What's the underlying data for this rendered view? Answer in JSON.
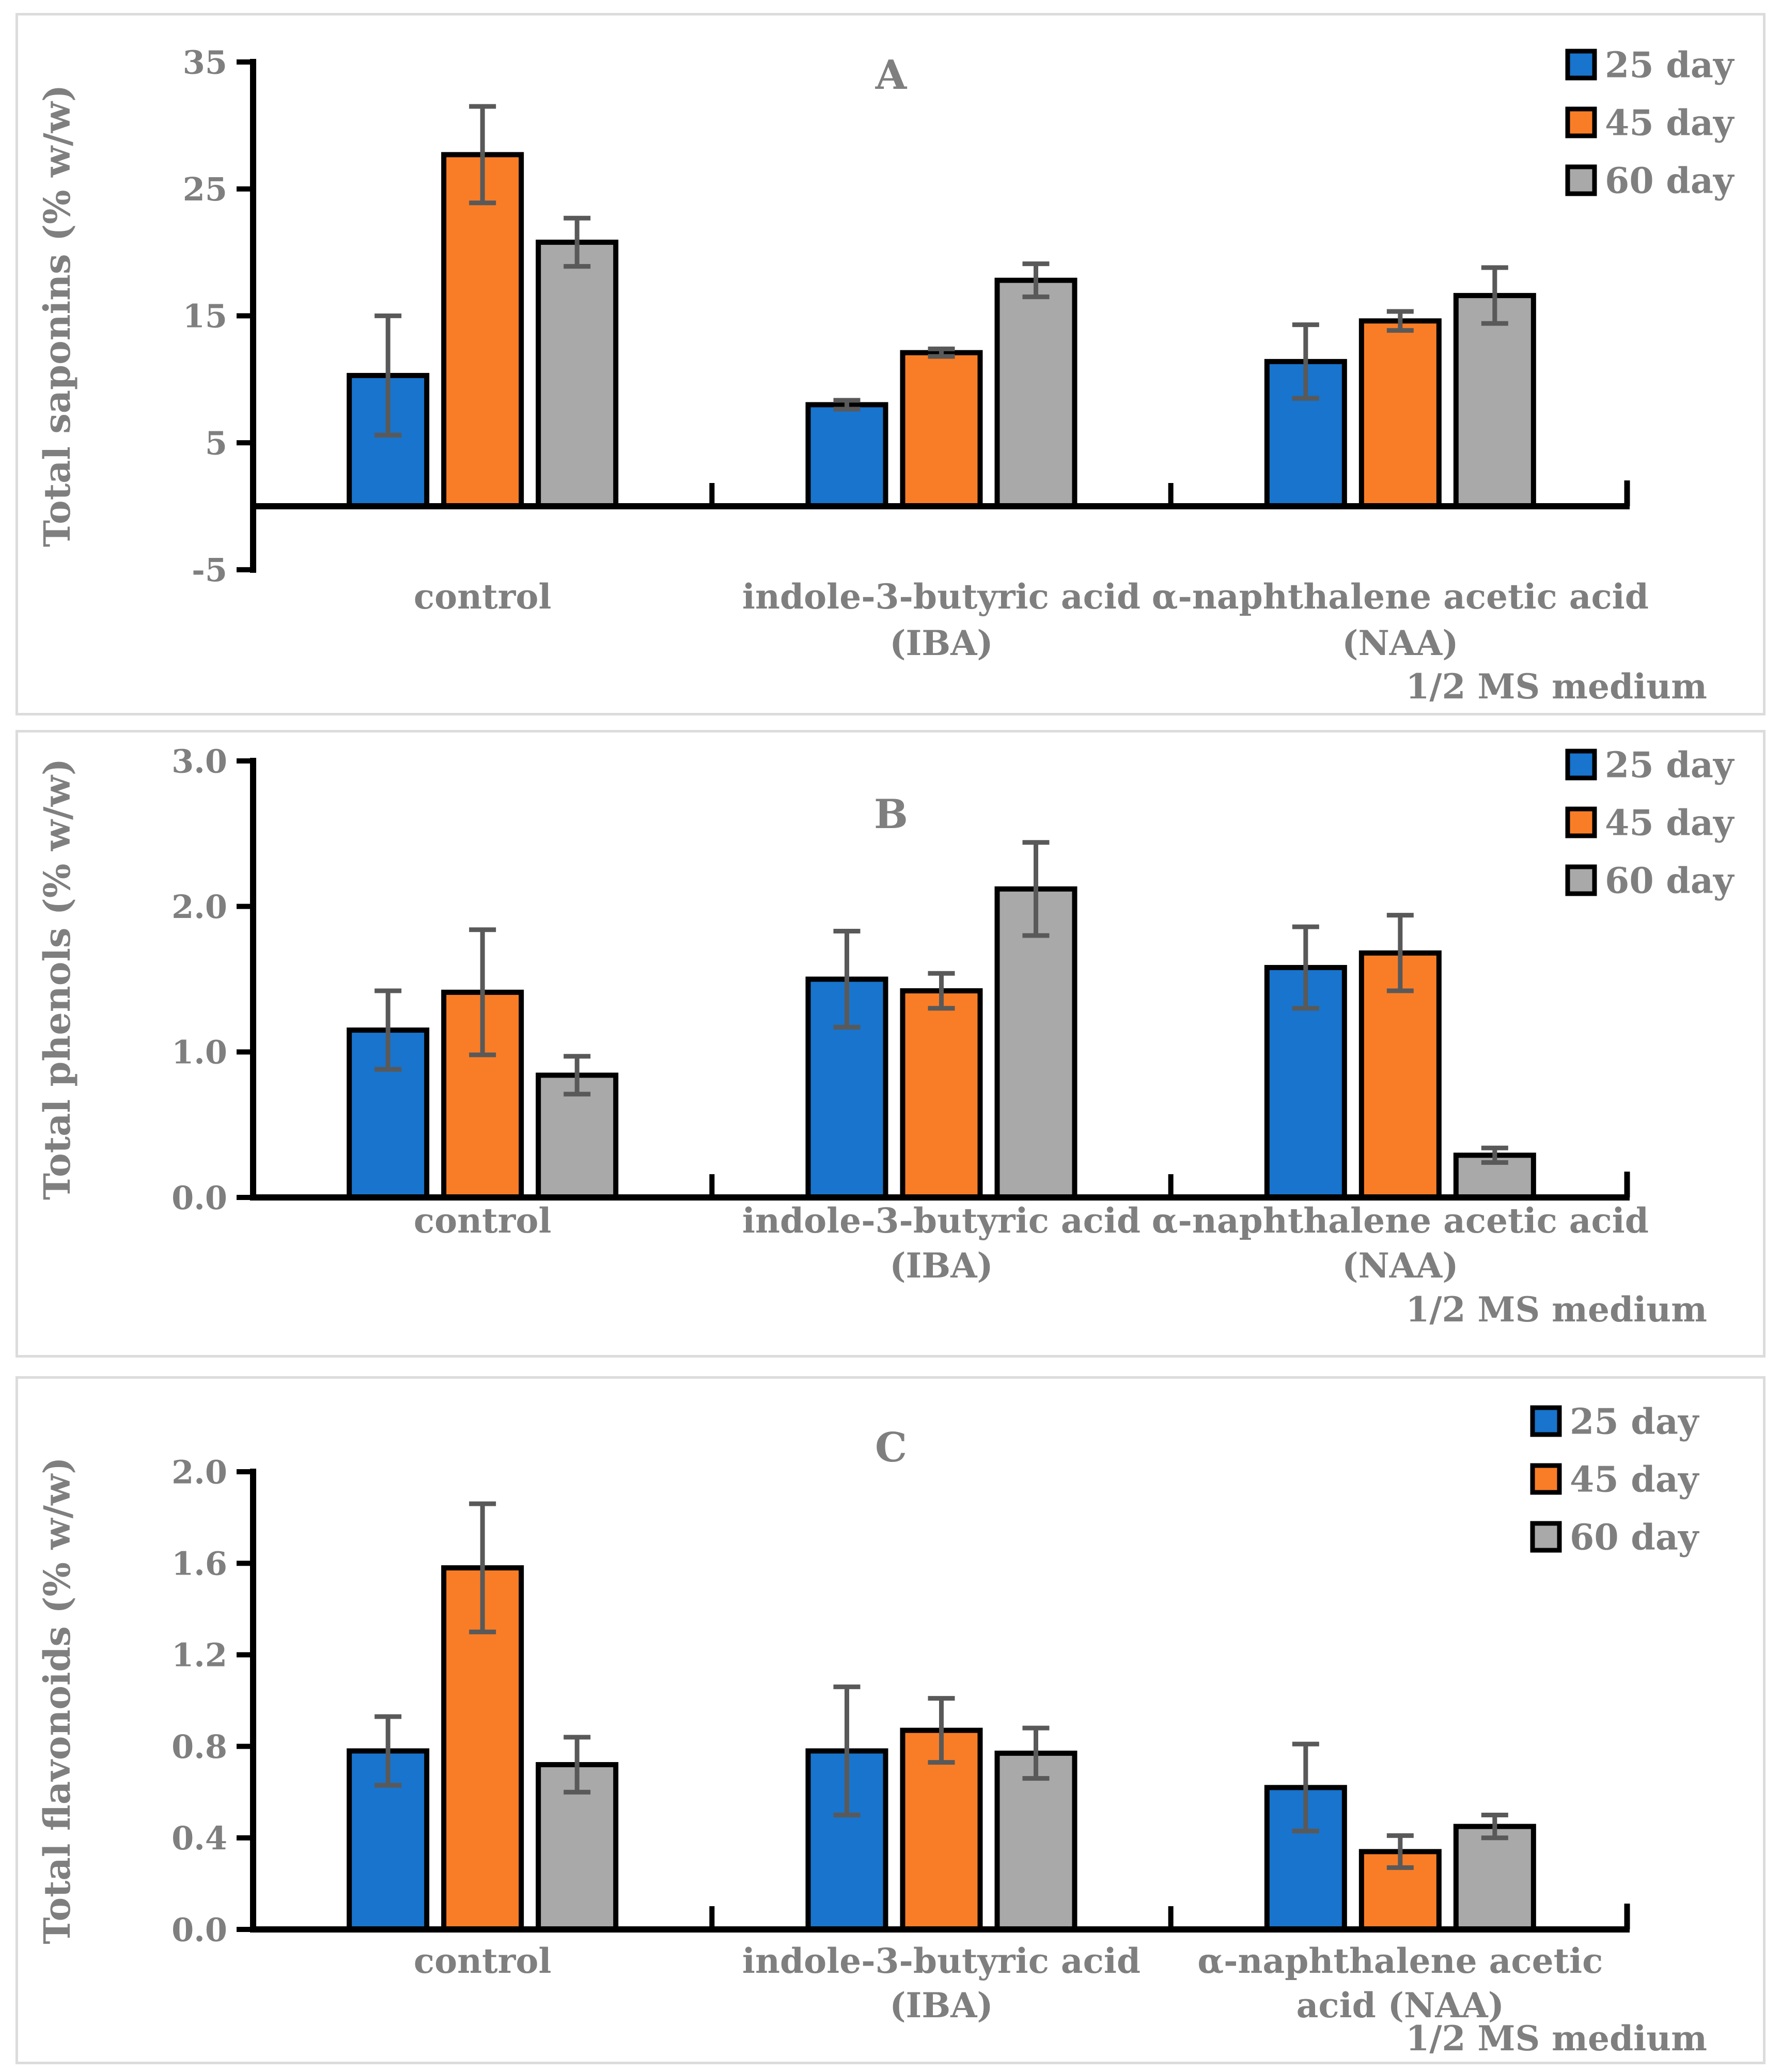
{
  "colors": {
    "series": [
      "#1874CC",
      "#F97D27",
      "#A9A9A9"
    ],
    "error_bar": "#595959",
    "text": "#7F7F7F",
    "axis": "#000000",
    "panel_border": "#DCDCDC"
  },
  "legend": {
    "labels": [
      "25 day",
      "45 day",
      "60 day"
    ]
  },
  "chart_data": [
    {
      "type": "bar",
      "panel_label": "A",
      "ylabel": "Total saponins (% w/w)",
      "ylim": [
        -5,
        35
      ],
      "yticks": [
        {
          "value": 35,
          "label": "35"
        },
        {
          "value": 25,
          "label": "25"
        },
        {
          "value": 15,
          "label": "15"
        },
        {
          "value": 5,
          "label": "5"
        },
        {
          "value": -5,
          "label": "-5"
        }
      ],
      "grid": false,
      "legend_position": "top-right",
      "categories": [
        {
          "label": "control",
          "lines": [
            "control"
          ]
        },
        {
          "label": "indole-3-butyric acid (IBA)",
          "lines": [
            "indole-3-butyric acid",
            "(IBA)"
          ]
        },
        {
          "label": "α-naphthalene acetic acid (NAA)",
          "lines": [
            "α-naphthalene acetic acid",
            "(NAA)"
          ]
        }
      ],
      "series": [
        {
          "name": "25 day",
          "values": [
            10.3,
            8.0,
            11.4
          ],
          "errors": [
            4.7,
            0.35,
            2.9
          ]
        },
        {
          "name": "45 day",
          "values": [
            27.7,
            12.1,
            14.6
          ],
          "errors": [
            3.8,
            0.3,
            0.75
          ]
        },
        {
          "name": "60 day",
          "values": [
            20.8,
            17.8,
            16.6
          ],
          "errors": [
            1.9,
            1.3,
            2.2
          ]
        }
      ],
      "annotation": "1/2 MS medium"
    },
    {
      "type": "bar",
      "panel_label": "B",
      "ylabel": "Total phenols (% w/w)",
      "ylim": [
        0,
        3
      ],
      "yticks": [
        {
          "value": 3,
          "label": "3.0"
        },
        {
          "value": 2,
          "label": "2.0"
        },
        {
          "value": 1,
          "label": "1.0"
        },
        {
          "value": 0,
          "label": "0.0"
        }
      ],
      "grid": false,
      "legend_position": "top-right",
      "categories": [
        {
          "label": "control",
          "lines": [
            "control"
          ]
        },
        {
          "label": "indole-3-butyric acid (IBA)",
          "lines": [
            "indole-3-butyric acid",
            "(IBA)"
          ]
        },
        {
          "label": "α-naphthalene acetic acid (NAA)",
          "lines": [
            "α-naphthalene acetic acid",
            "(NAA)"
          ]
        }
      ],
      "series": [
        {
          "name": "25 day",
          "values": [
            1.15,
            1.5,
            1.58
          ],
          "errors": [
            0.27,
            0.33,
            0.28
          ]
        },
        {
          "name": "45 day",
          "values": [
            1.41,
            1.42,
            1.68
          ],
          "errors": [
            0.43,
            0.12,
            0.26
          ]
        },
        {
          "name": "60 day",
          "values": [
            0.84,
            2.12,
            0.29
          ],
          "errors": [
            0.13,
            0.32,
            0.05
          ]
        }
      ],
      "annotation": "1/2 MS medium"
    },
    {
      "type": "bar",
      "panel_label": "C",
      "ylabel": "Total flavonoids (% w/w)",
      "ylim": [
        0,
        2
      ],
      "yticks": [
        {
          "value": 2.0,
          "label": "2.0"
        },
        {
          "value": 1.6,
          "label": "1.6"
        },
        {
          "value": 1.2,
          "label": "1.2"
        },
        {
          "value": 0.8,
          "label": "0.8"
        },
        {
          "value": 0.4,
          "label": "0.4"
        },
        {
          "value": 0.0,
          "label": "0.0"
        }
      ],
      "grid": false,
      "legend_position": "top-right",
      "categories": [
        {
          "label": "control",
          "lines": [
            "control"
          ]
        },
        {
          "label": "indole-3-butyric acid (IBA)",
          "lines": [
            "indole-3-butyric acid",
            "(IBA)"
          ]
        },
        {
          "label": "α-naphthalene acetic acid (NAA)",
          "lines": [
            "α-naphthalene acetic",
            "acid (NAA)"
          ]
        }
      ],
      "series": [
        {
          "name": "25 day",
          "values": [
            0.78,
            0.78,
            0.62
          ],
          "errors": [
            0.15,
            0.28,
            0.19
          ]
        },
        {
          "name": "45 day",
          "values": [
            1.58,
            0.87,
            0.34
          ],
          "errors": [
            0.28,
            0.14,
            0.07
          ]
        },
        {
          "name": "60 day",
          "values": [
            0.72,
            0.77,
            0.45
          ],
          "errors": [
            0.12,
            0.11,
            0.05
          ]
        }
      ],
      "annotation": "1/2 MS medium"
    }
  ]
}
